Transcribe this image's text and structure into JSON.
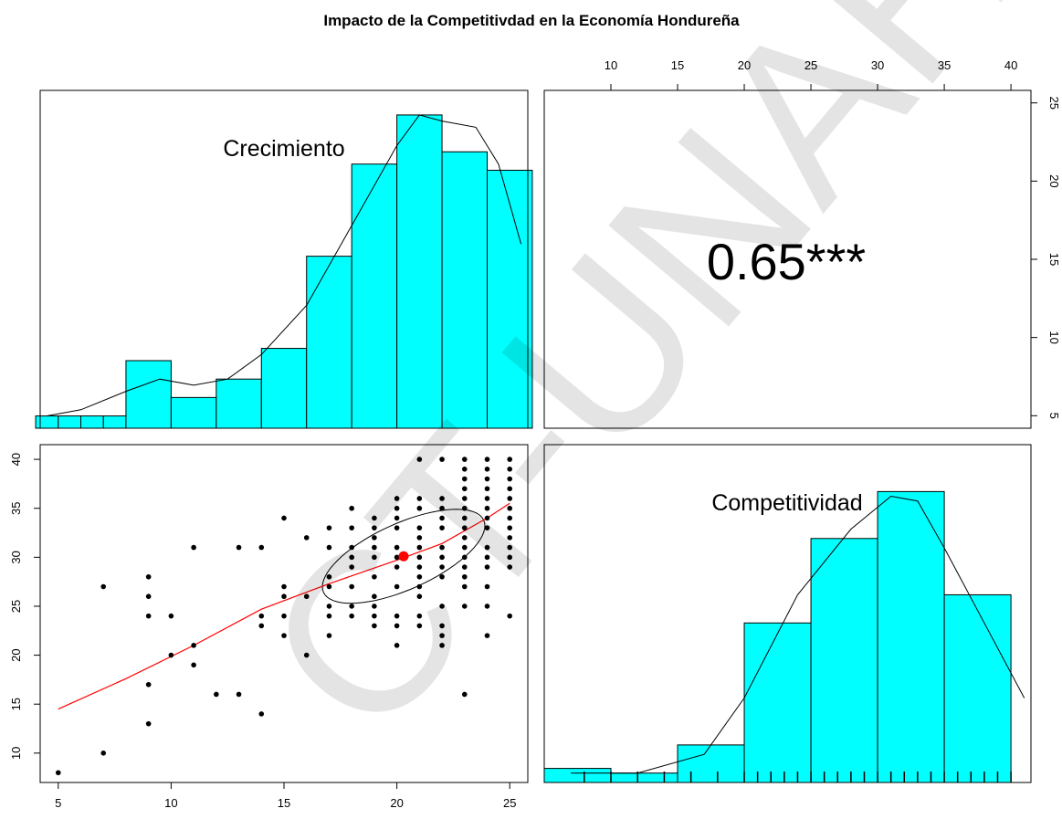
{
  "chart_data": {
    "type": "scatter-matrix",
    "title": "Impacto de la Competitivdad en la Economía Hondureña",
    "variables": [
      "Crecimiento",
      "Competitividad"
    ],
    "correlation": {
      "label": "0.65***",
      "value": 0.65,
      "significance": "***"
    },
    "x_ticks": [
      5,
      10,
      15,
      20,
      25
    ],
    "y_ticks": [
      10,
      15,
      20,
      25,
      30,
      35,
      40
    ],
    "top_ticks": [
      10,
      15,
      20,
      25,
      30,
      35,
      40
    ],
    "right_ticks": [
      5,
      10,
      15,
      20,
      25
    ],
    "scatter": {
      "points": [
        [
          5,
          8
        ],
        [
          7,
          10
        ],
        [
          7,
          27
        ],
        [
          9,
          13
        ],
        [
          9,
          17
        ],
        [
          9,
          24
        ],
        [
          9,
          26
        ],
        [
          9,
          28
        ],
        [
          10,
          20
        ],
        [
          10,
          24
        ],
        [
          11,
          19
        ],
        [
          11,
          21
        ],
        [
          11,
          31
        ],
        [
          12,
          16
        ],
        [
          13,
          16
        ],
        [
          13,
          31
        ],
        [
          14,
          14
        ],
        [
          14,
          23
        ],
        [
          14,
          24
        ],
        [
          14,
          31
        ],
        [
          15,
          22
        ],
        [
          15,
          24
        ],
        [
          15,
          26
        ],
        [
          15,
          27
        ],
        [
          15,
          34
        ],
        [
          16,
          20
        ],
        [
          16,
          26
        ],
        [
          16,
          32
        ],
        [
          17,
          22
        ],
        [
          17,
          24
        ],
        [
          17,
          25
        ],
        [
          17,
          27
        ],
        [
          17,
          28
        ],
        [
          17,
          31
        ],
        [
          17,
          33
        ],
        [
          18,
          24
        ],
        [
          18,
          25
        ],
        [
          18,
          27
        ],
        [
          18,
          29
        ],
        [
          18,
          30
        ],
        [
          18,
          31
        ],
        [
          18,
          33
        ],
        [
          18,
          35
        ],
        [
          19,
          23
        ],
        [
          19,
          24
        ],
        [
          19,
          25
        ],
        [
          19,
          26
        ],
        [
          19,
          28
        ],
        [
          19,
          30
        ],
        [
          19,
          31
        ],
        [
          19,
          32
        ],
        [
          19,
          33
        ],
        [
          19,
          34
        ],
        [
          20,
          21
        ],
        [
          20,
          23
        ],
        [
          20,
          24
        ],
        [
          20,
          27
        ],
        [
          20,
          29
        ],
        [
          20,
          30
        ],
        [
          20,
          31
        ],
        [
          20,
          33
        ],
        [
          20,
          34
        ],
        [
          20,
          35
        ],
        [
          20,
          36
        ],
        [
          21,
          23
        ],
        [
          21,
          24
        ],
        [
          21,
          26
        ],
        [
          21,
          27
        ],
        [
          21,
          28
        ],
        [
          21,
          29
        ],
        [
          21,
          30
        ],
        [
          21,
          31
        ],
        [
          21,
          32
        ],
        [
          21,
          33
        ],
        [
          21,
          35
        ],
        [
          21,
          36
        ],
        [
          21,
          40
        ],
        [
          22,
          21
        ],
        [
          22,
          22
        ],
        [
          22,
          23
        ],
        [
          22,
          25
        ],
        [
          22,
          28
        ],
        [
          22,
          29
        ],
        [
          22,
          30
        ],
        [
          22,
          31
        ],
        [
          22,
          33
        ],
        [
          22,
          34
        ],
        [
          22,
          35
        ],
        [
          22,
          36
        ],
        [
          22,
          40
        ],
        [
          23,
          16
        ],
        [
          23,
          25
        ],
        [
          23,
          27
        ],
        [
          23,
          28
        ],
        [
          23,
          29
        ],
        [
          23,
          30
        ],
        [
          23,
          31
        ],
        [
          23,
          32
        ],
        [
          23,
          33
        ],
        [
          23,
          34
        ],
        [
          23,
          35
        ],
        [
          23,
          36
        ],
        [
          23,
          37
        ],
        [
          23,
          38
        ],
        [
          23,
          39
        ],
        [
          23,
          40
        ],
        [
          24,
          22
        ],
        [
          24,
          25
        ],
        [
          24,
          27
        ],
        [
          24,
          29
        ],
        [
          24,
          30
        ],
        [
          24,
          31
        ],
        [
          24,
          33
        ],
        [
          24,
          34
        ],
        [
          24,
          35
        ],
        [
          24,
          36
        ],
        [
          24,
          37
        ],
        [
          24,
          38
        ],
        [
          24,
          39
        ],
        [
          24,
          40
        ],
        [
          25,
          24
        ],
        [
          25,
          29
        ],
        [
          25,
          30
        ],
        [
          25,
          31
        ],
        [
          25,
          32
        ],
        [
          25,
          33
        ],
        [
          25,
          34
        ],
        [
          25,
          35
        ],
        [
          25,
          36
        ],
        [
          25,
          37
        ],
        [
          25,
          38
        ],
        [
          25,
          39
        ],
        [
          25,
          40
        ]
      ],
      "mean_point": [
        20.3,
        30.1
      ],
      "smooth_line": [
        [
          5,
          14.5
        ],
        [
          8,
          17.6
        ],
        [
          11,
          21.0
        ],
        [
          14,
          24.7
        ],
        [
          17,
          27.3
        ],
        [
          20,
          29.7
        ],
        [
          22,
          31.4
        ],
        [
          24,
          34.0
        ],
        [
          25,
          35.5
        ]
      ],
      "ellipse": {
        "center": [
          20.3,
          30.1
        ],
        "sd_x": 3.6,
        "sd_y": 4.8,
        "r": 0.65
      },
      "point_color": "#000000",
      "smooth_color": "#ff0000",
      "mean_color": "#ff0000"
    },
    "hist_crecimiento": {
      "x": [
        4.5,
        5.5,
        6.5,
        7.5,
        9,
        11,
        13,
        15,
        17,
        19,
        21,
        23,
        25
      ],
      "values": [
        0.02,
        0.02,
        0.02,
        0.02,
        0.11,
        0.05,
        0.08,
        0.13,
        0.28,
        0.43,
        0.51,
        0.45,
        0.42
      ],
      "density": [
        [
          4.5,
          0.02
        ],
        [
          6,
          0.03
        ],
        [
          8,
          0.06
        ],
        [
          9.5,
          0.08
        ],
        [
          11,
          0.07
        ],
        [
          12.5,
          0.08
        ],
        [
          14,
          0.12
        ],
        [
          16,
          0.2
        ],
        [
          18,
          0.33
        ],
        [
          20,
          0.46
        ],
        [
          21,
          0.51
        ],
        [
          22,
          0.5
        ],
        [
          23.5,
          0.49
        ],
        [
          24.5,
          0.43
        ],
        [
          25.5,
          0.3
        ]
      ],
      "fill": "#00ffff"
    },
    "hist_competitividad": {
      "x": [
        7.5,
        12.5,
        17.5,
        22.5,
        27.5,
        32.5,
        37.5
      ],
      "values": [
        0.015,
        0.01,
        0.04,
        0.17,
        0.26,
        0.31,
        0.2
      ],
      "density": [
        [
          7,
          0.01
        ],
        [
          12,
          0.01
        ],
        [
          17,
          0.03
        ],
        [
          20,
          0.09
        ],
        [
          24,
          0.2
        ],
        [
          28,
          0.27
        ],
        [
          31,
          0.305
        ],
        [
          33,
          0.3
        ],
        [
          35,
          0.25
        ],
        [
          38,
          0.17
        ],
        [
          41,
          0.09
        ]
      ],
      "rug": [
        8,
        10,
        12,
        14,
        16,
        18,
        20,
        21,
        22,
        23,
        24,
        25,
        26,
        27,
        28,
        29,
        30,
        31,
        32,
        33,
        34,
        35,
        36,
        37,
        38,
        39,
        40
      ],
      "fill": "#00ffff"
    }
  }
}
